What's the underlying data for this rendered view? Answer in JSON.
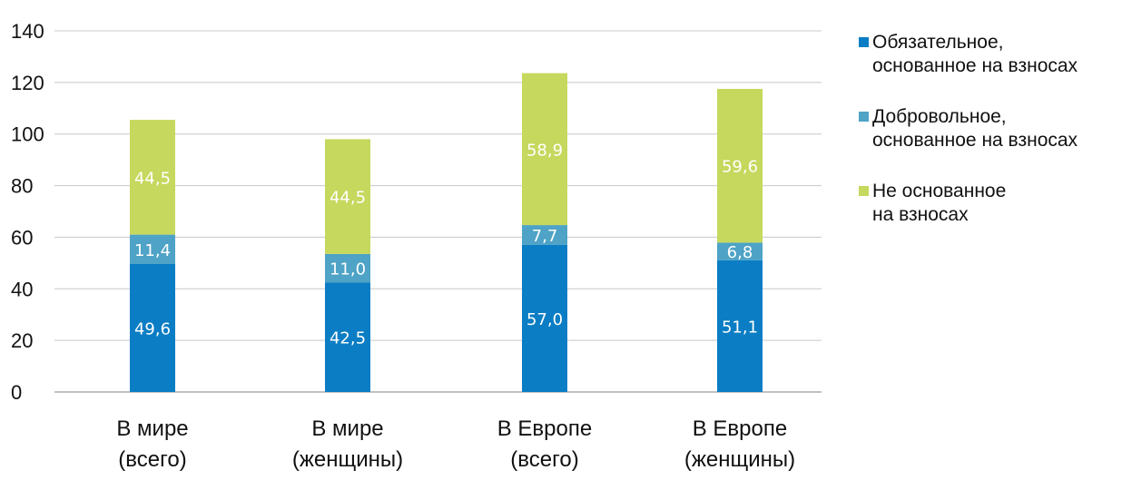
{
  "chart_data": {
    "type": "bar",
    "stacked": true,
    "categories": [
      [
        "В мире",
        "(всего)"
      ],
      [
        "В мире",
        "(женщины)"
      ],
      [
        "В Европе",
        "(всего)"
      ],
      [
        "В Европе",
        "(женщины)"
      ]
    ],
    "series": [
      {
        "name": "Обязательное,\nоснованное на взносах",
        "color": "#0b7dc4",
        "values": [
          49.6,
          42.5,
          57.0,
          51.1
        ],
        "labels": [
          "49,6",
          "42,5",
          "57,0",
          "51,1"
        ]
      },
      {
        "name": "Добровольное,\nоснованное на взносах",
        "color": "#4ea3c6",
        "values": [
          11.4,
          11.0,
          7.7,
          6.8
        ],
        "labels": [
          "11,4",
          "11,0",
          "7,7",
          "6,8"
        ]
      },
      {
        "name": "Не основанное\nна взносах",
        "color": "#c6d85d",
        "values": [
          44.5,
          44.5,
          58.9,
          59.6
        ],
        "labels": [
          "44,5",
          "44,5",
          "58,9",
          "59,6"
        ]
      }
    ],
    "ylim": [
      0,
      140
    ],
    "yticks": [
      0,
      20,
      40,
      60,
      80,
      100,
      120,
      140
    ],
    "title": "",
    "xlabel": "",
    "ylabel": "",
    "grid": true,
    "legend_position": "right"
  }
}
